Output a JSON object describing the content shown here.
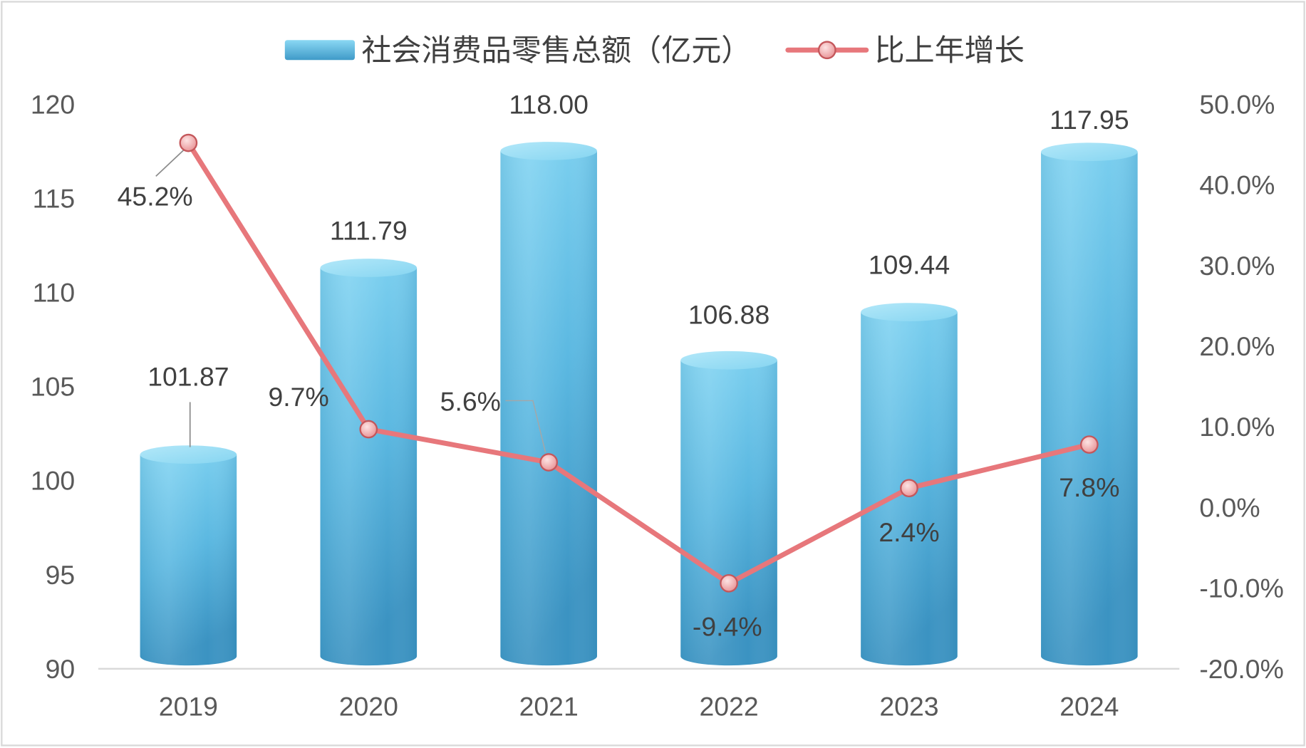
{
  "chart_data": {
    "type": "bar",
    "categories": [
      "2019",
      "2020",
      "2021",
      "2022",
      "2023",
      "2024"
    ],
    "series": [
      {
        "name": "社会消费品零售总额（亿元）",
        "type": "bar",
        "axis": "left",
        "values": [
          101.87,
          111.79,
          118.0,
          106.88,
          109.44,
          117.95
        ],
        "labels": [
          "101.87",
          "111.79",
          "118.00",
          "106.88",
          "109.44",
          "117.95"
        ],
        "color": "#4DB3DE"
      },
      {
        "name": "比上年增长",
        "type": "line",
        "axis": "right",
        "values": [
          45.2,
          9.7,
          5.6,
          -9.4,
          2.4,
          7.8
        ],
        "labels": [
          "45.2%",
          "9.7%",
          "5.6%",
          "-9.4%",
          "2.4%",
          "7.8%"
        ],
        "color": "#E7777B"
      }
    ],
    "left_axis": {
      "ylim": [
        90,
        120
      ],
      "tick_labels": [
        "90",
        "95",
        "100",
        "105",
        "110",
        "115",
        "120"
      ]
    },
    "right_axis": {
      "ylim": [
        -20,
        50
      ],
      "tick_labels": [
        "-20.0%",
        "-10.0%",
        "0.0%",
        "10.0%",
        "20.0%",
        "30.0%",
        "40.0%",
        "50.0%"
      ]
    },
    "legend": "top",
    "grid": false
  }
}
